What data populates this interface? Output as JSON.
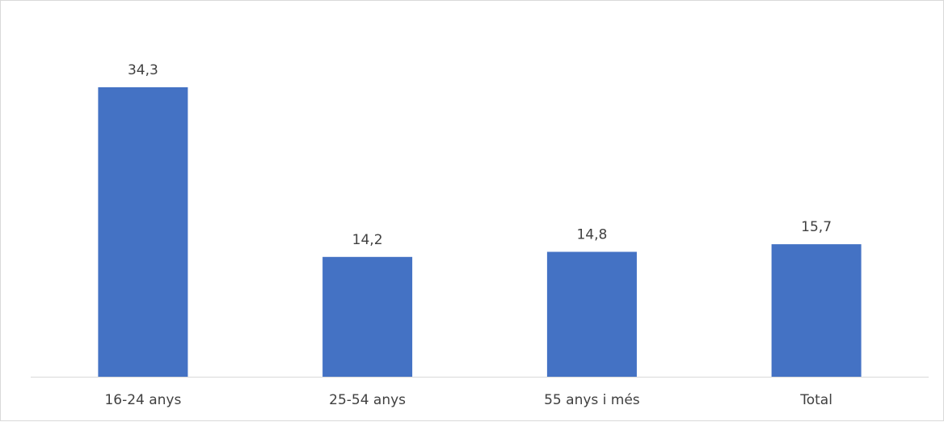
{
  "chart_data": {
    "type": "bar",
    "categories": [
      "16-24 anys",
      "25-54 anys",
      "55 anys i més",
      "Total"
    ],
    "value_labels": [
      "34,3",
      "14,2",
      "14,8",
      "15,7"
    ],
    "values": [
      34.3,
      14.2,
      14.8,
      15.7
    ],
    "title": "",
    "xlabel": "",
    "ylabel": "",
    "ylim": [
      0,
      40
    ],
    "grid": false,
    "legend": "none",
    "bar_color": "#4472C4",
    "axis_color": "#d9d9d9",
    "label_color": "#404040"
  }
}
